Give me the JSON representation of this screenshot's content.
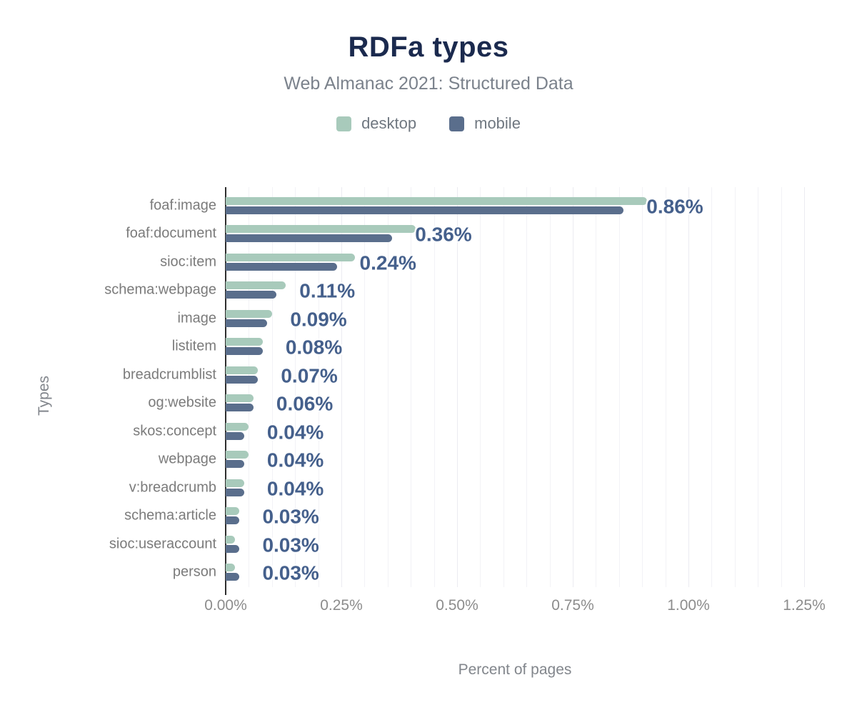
{
  "header": {
    "title": "RDFa types",
    "subtitle": "Web Almanac 2021: Structured Data"
  },
  "chart_data": {
    "type": "bar",
    "orientation": "horizontal",
    "title": "RDFa types",
    "subtitle": "Web Almanac 2021: Structured Data",
    "xlabel": "Percent of pages",
    "ylabel": "Types",
    "xlim": [
      0,
      1.25
    ],
    "x_ticks": [
      "0.00%",
      "0.25%",
      "0.50%",
      "0.75%",
      "1.00%",
      "1.25%"
    ],
    "x_tick_values": [
      0,
      0.25,
      0.5,
      0.75,
      1.0,
      1.25
    ],
    "grid": "vertical minor gridlines every 0.05%, major every 0.25%",
    "legend_position": "top",
    "categories": [
      "foaf:image",
      "foaf:document",
      "sioc:item",
      "schema:webpage",
      "image",
      "listitem",
      "breadcrumblist",
      "og:website",
      "skos:concept",
      "webpage",
      "v:breadcrumb",
      "schema:article",
      "sioc:useraccount",
      "person"
    ],
    "series": [
      {
        "name": "desktop",
        "color": "#a8cabb",
        "values": [
          0.91,
          0.41,
          0.28,
          0.13,
          0.1,
          0.08,
          0.07,
          0.06,
          0.05,
          0.05,
          0.04,
          0.03,
          0.02,
          0.02
        ]
      },
      {
        "name": "mobile",
        "color": "#5a6e8c",
        "values": [
          0.86,
          0.36,
          0.24,
          0.11,
          0.09,
          0.08,
          0.07,
          0.06,
          0.04,
          0.04,
          0.04,
          0.03,
          0.03,
          0.03
        ]
      }
    ],
    "value_labels": [
      "0.86%",
      "0.36%",
      "0.24%",
      "0.11%",
      "0.09%",
      "0.08%",
      "0.07%",
      "0.06%",
      "0.04%",
      "0.04%",
      "0.04%",
      "0.03%",
      "0.03%",
      "0.03%"
    ],
    "value_label_series": "mobile",
    "value_label_color": "#45608c"
  },
  "colors": {
    "title": "#1b2a4e",
    "subtitle": "#7b828c",
    "axis_line": "#2e2e2e",
    "gridline": "#f2f2f6",
    "tick_label": "#8c8c8c",
    "category_label": "#7b7b7b"
  }
}
